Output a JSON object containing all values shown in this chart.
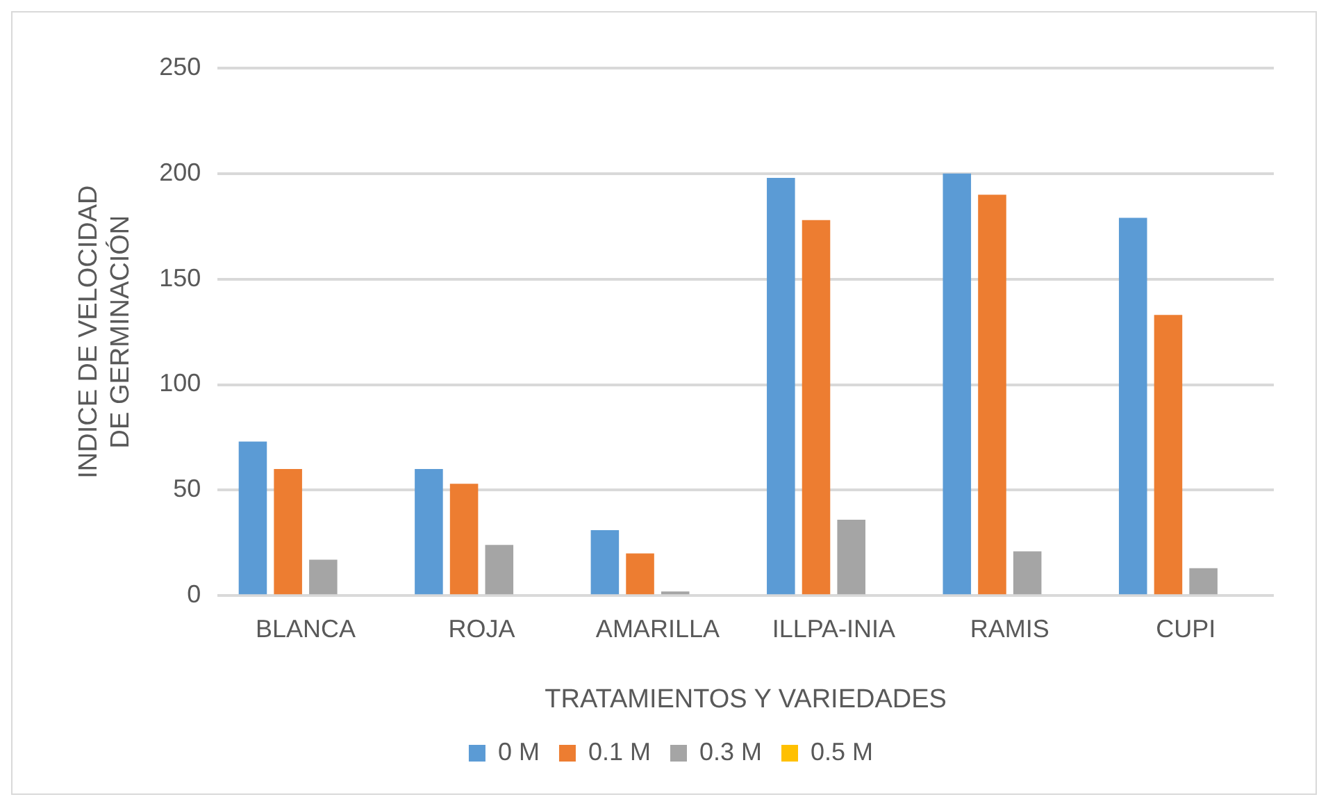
{
  "chart_data": {
    "type": "bar",
    "xlabel": "TRATAMIENTOS Y VARIEDADES",
    "ylabel": "INDICE DE VELOCIDAD DE GERMINACIÓN",
    "categories": [
      "BLANCA",
      "ROJA",
      "AMARILLA",
      "ILLPA-INIA",
      "RAMIS",
      "CUPI"
    ],
    "series": [
      {
        "name": "0 M",
        "color": "#5b9bd5",
        "values": [
          73,
          60,
          31,
          198,
          200,
          179
        ]
      },
      {
        "name": "0.1 M",
        "color": "#ed7d31",
        "values": [
          60,
          53,
          20,
          178,
          190,
          133
        ]
      },
      {
        "name": "0.3 M",
        "color": "#a5a5a5",
        "values": [
          17,
          24,
          2,
          36,
          21,
          13
        ]
      },
      {
        "name": "0.5 M",
        "color": "#ffc000",
        "values": [
          0,
          0,
          0,
          0,
          0,
          0
        ]
      }
    ],
    "ylim": [
      0,
      250
    ],
    "yticks": [
      0,
      50,
      100,
      150,
      200,
      250
    ],
    "grid": "y",
    "legend": "bottom"
  }
}
